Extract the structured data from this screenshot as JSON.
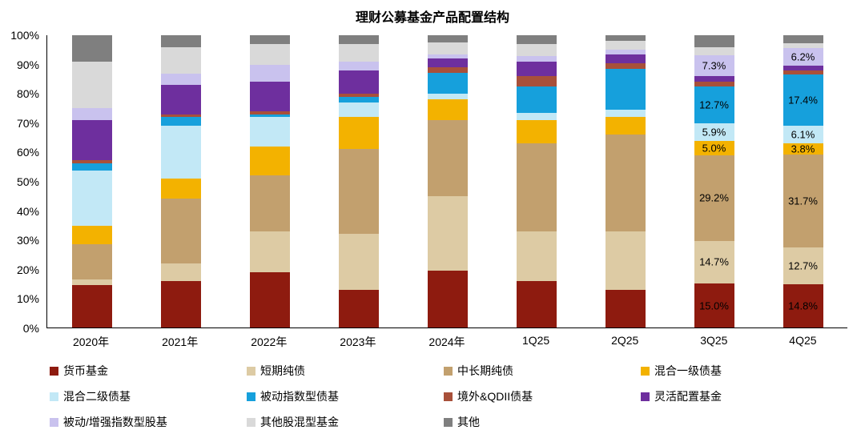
{
  "chart_data": {
    "type": "bar",
    "stacked": true,
    "title": "理财公募基金产品配置结构",
    "categories": [
      "2020年",
      "2021年",
      "2022年",
      "2023年",
      "2024年",
      "1Q25",
      "2Q25",
      "3Q25",
      "4Q25"
    ],
    "y_ticks": [
      "100%",
      "90%",
      "80%",
      "70%",
      "60%",
      "50%",
      "40%",
      "30%",
      "20%",
      "10%",
      "0%"
    ],
    "ylim": [
      0,
      100
    ],
    "unit": "%",
    "grid": false,
    "legend_position": "bottom",
    "series": [
      {
        "name": "货币基金",
        "color": "#8E1B0F",
        "values": [
          14.5,
          16,
          19,
          13,
          19.5,
          16,
          13,
          15.0,
          14.8
        ],
        "labels": [
          "",
          "",
          "",
          "",
          "",
          "",
          "",
          "15.0%",
          "14.8%"
        ]
      },
      {
        "name": "短期纯债",
        "color": "#DDCBA4",
        "values": [
          2,
          6,
          14,
          19,
          25.5,
          17,
          20,
          14.7,
          12.7
        ],
        "labels": [
          "",
          "",
          "",
          "",
          "",
          "",
          "",
          "14.7%",
          "12.7%"
        ]
      },
      {
        "name": "中长期纯债",
        "color": "#C2A06E",
        "values": [
          12,
          22,
          19,
          29,
          26,
          30,
          33,
          29.2,
          31.7
        ],
        "labels": [
          "",
          "",
          "",
          "",
          "",
          "",
          "",
          "29.2%",
          "31.7%"
        ]
      },
      {
        "name": "混合一级债基",
        "color": "#F3B200",
        "values": [
          6.3,
          7,
          10,
          11,
          7,
          8,
          6,
          5.0,
          3.8
        ],
        "labels": [
          "",
          "",
          "",
          "",
          "",
          "",
          "",
          "5.0%",
          "3.8%"
        ]
      },
      {
        "name": "混合二级债基",
        "color": "#C2E8F6",
        "values": [
          19,
          18,
          10,
          5,
          2,
          2.5,
          2.5,
          5.9,
          6.1
        ],
        "labels": [
          "",
          "",
          "",
          "",
          "",
          "",
          "",
          "5.9%",
          "6.1%"
        ]
      },
      {
        "name": "被动指数型债基",
        "color": "#16A0DC",
        "values": [
          2.5,
          3,
          1,
          2,
          7,
          9,
          14,
          12.7,
          17.4
        ],
        "labels": [
          "",
          "",
          "",
          "",
          "",
          "",
          "",
          "12.7%",
          "17.4%"
        ]
      },
      {
        "name": "境外&QDII债基",
        "color": "#A8503A",
        "values": [
          1,
          1,
          1,
          1,
          2,
          3.5,
          2,
          1.5,
          1.5
        ],
        "labels": [
          "",
          "",
          "",
          "",
          "",
          "",
          "",
          "",
          ""
        ]
      },
      {
        "name": "灵活配置基金",
        "color": "#6E2F9E",
        "values": [
          13.7,
          10,
          10,
          8,
          3,
          5,
          3,
          2.0,
          1.5
        ],
        "labels": [
          "",
          "",
          "",
          "",
          "",
          "",
          "",
          "",
          ""
        ]
      },
      {
        "name": "被动/增强指数型股基",
        "color": "#C9C2EE",
        "values": [
          4,
          4,
          6,
          3,
          1.5,
          2,
          1.5,
          7.3,
          6.2
        ],
        "labels": [
          "",
          "",
          "",
          "",
          "",
          "",
          "",
          "7.3%",
          "6.2%"
        ]
      },
      {
        "name": "其他股混型基金",
        "color": "#D9D9D9",
        "values": [
          16,
          9,
          7,
          6,
          4,
          4,
          3,
          2.5,
          1.5
        ],
        "labels": [
          "",
          "",
          "",
          "",
          "",
          "",
          "",
          "",
          ""
        ]
      },
      {
        "name": "其他",
        "color": "#7F7F7F",
        "values": [
          9,
          4,
          3,
          3,
          2.5,
          3,
          2,
          4.2,
          2.8
        ],
        "labels": [
          "",
          "",
          "",
          "",
          "",
          "",
          "",
          "",
          ""
        ]
      }
    ]
  }
}
